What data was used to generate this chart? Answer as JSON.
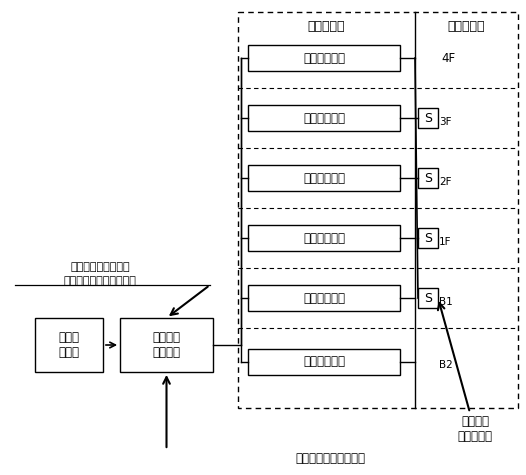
{
  "bg_color": "#ffffff",
  "fig_width": 5.26,
  "fig_height": 4.75,
  "dpi": 100,
  "rooms_label": "（居　室）",
  "stairs_label": "（階段室）",
  "device_label": "誘導音装置等",
  "floors": [
    "4F",
    "3F",
    "2F",
    "1F",
    "B1",
    "B2"
  ],
  "box1_label": "自火報\n受信機",
  "box2_label": "誘導灯用\n信号装置",
  "note1": "移報端子（｢接点）",
  "note2": "（代表無電圧接点出力）",
  "bottom_label": "誘導音・点滅信号端子",
  "smoke_label": "煙感知器\n（停止用）",
  "S_label": "S"
}
